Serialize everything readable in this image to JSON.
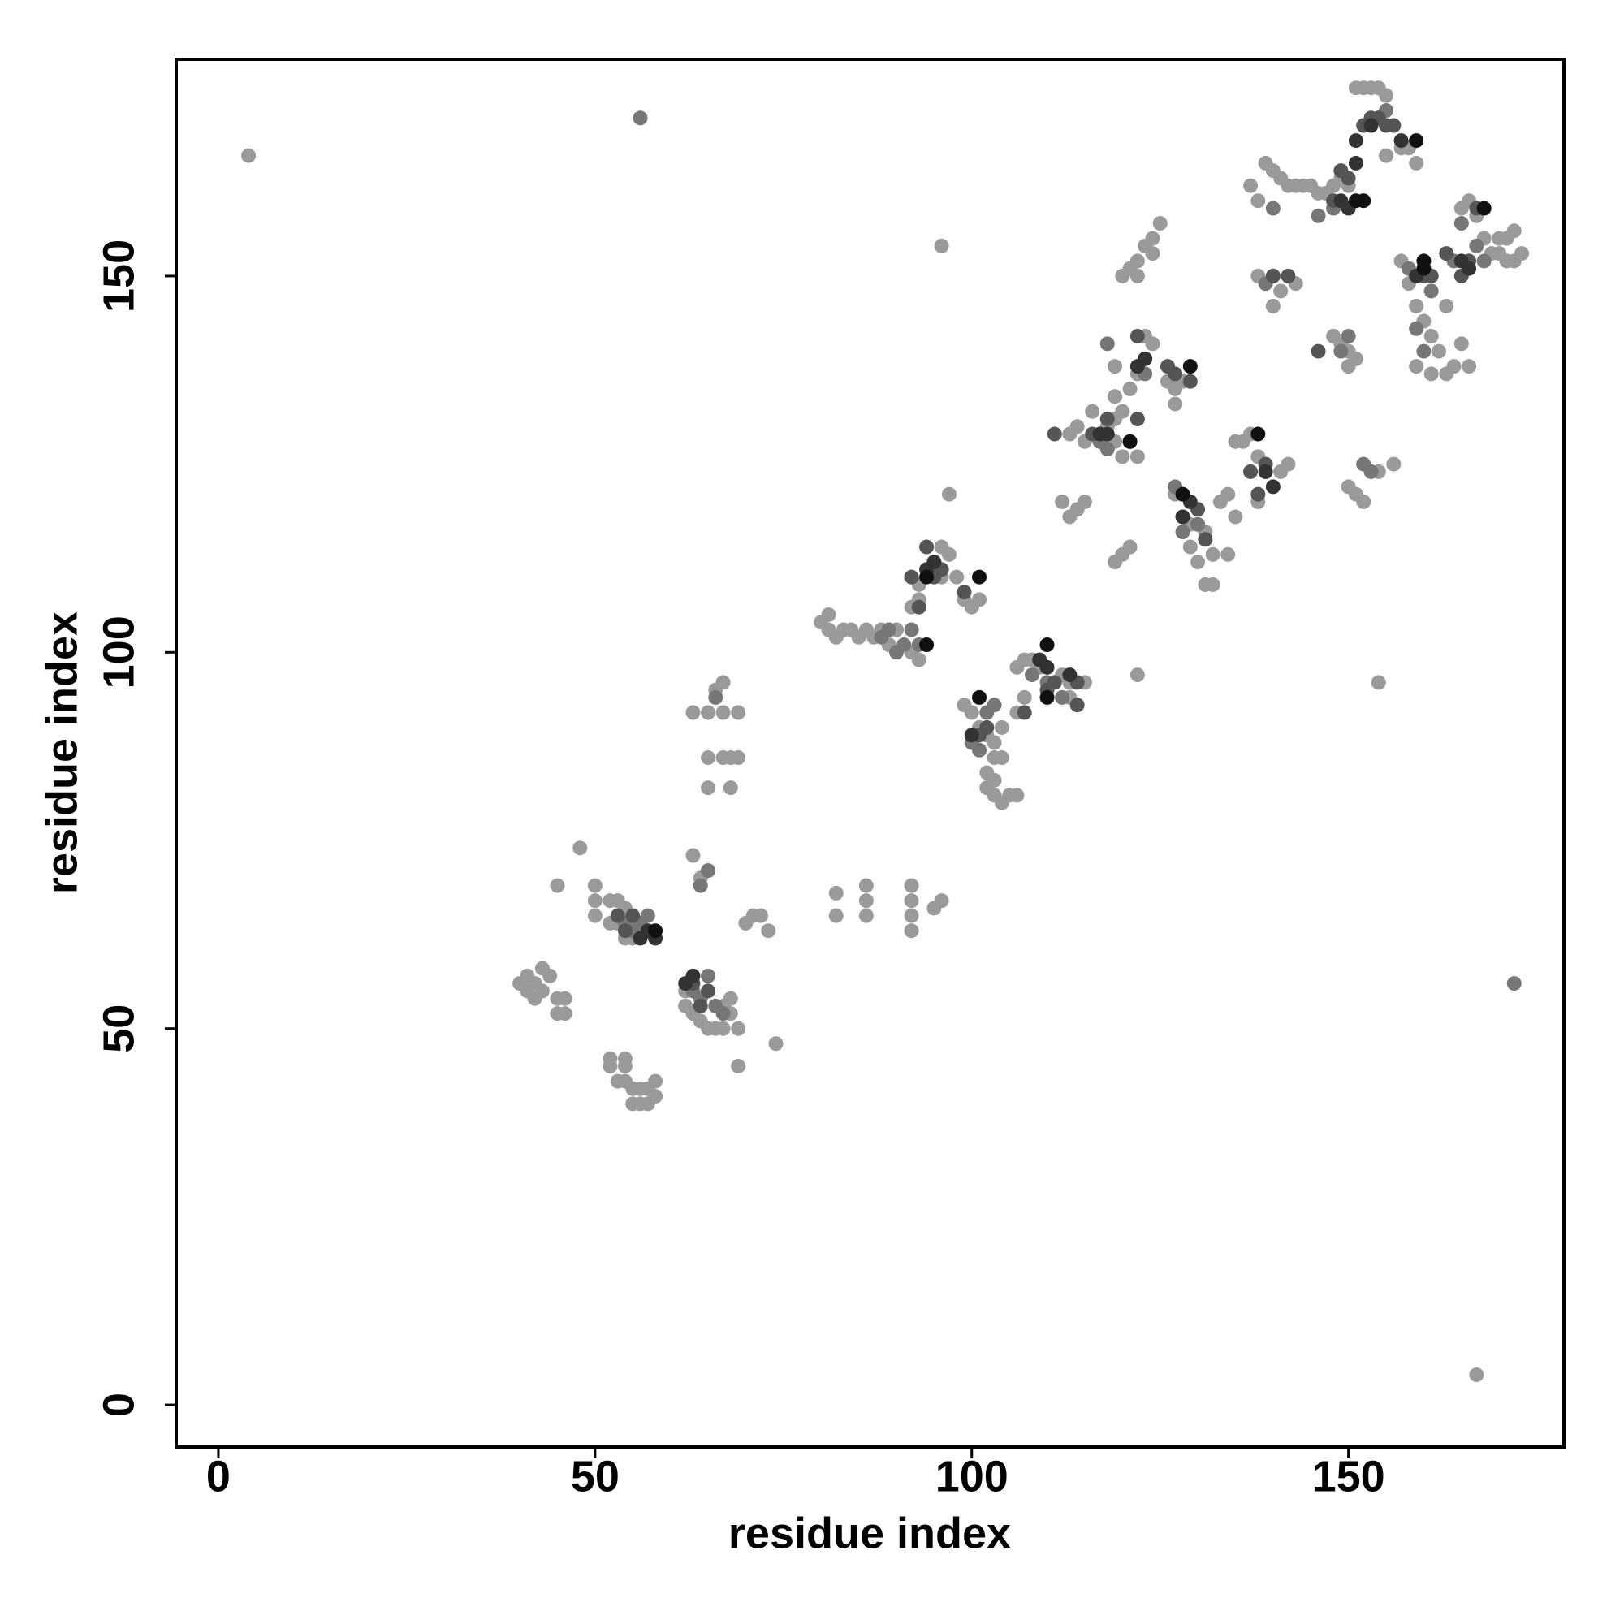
{
  "chart_data": {
    "type": "scatter",
    "x_label": "residue index",
    "y_label": "residue index",
    "xlim": [
      -5.6,
      178.6
    ],
    "ylim": [
      -5.6,
      178.8
    ],
    "xticks": [
      0,
      50,
      100,
      150
    ],
    "yticks": [
      0,
      50,
      100,
      150
    ],
    "series": [
      {
        "color": "#9a9a9a",
        "x": [
          4,
          96,
          167,
          40,
          41,
          42,
          43,
          41,
          43,
          42,
          44,
          45,
          46,
          45,
          46,
          48,
          45,
          50,
          50,
          50,
          52,
          54,
          52,
          54,
          53,
          54,
          55,
          56,
          57,
          55,
          56,
          57,
          58,
          58,
          52,
          53,
          54,
          53,
          52,
          54,
          55,
          62,
          62,
          63,
          64,
          65,
          66,
          67,
          69,
          74,
          69,
          68,
          67,
          68,
          63,
          64,
          65,
          63,
          65,
          67,
          69,
          65,
          67,
          68,
          69,
          65,
          68,
          66,
          67,
          70,
          71,
          72,
          73,
          82,
          82,
          86,
          86,
          86,
          92,
          92,
          92,
          92,
          95,
          96,
          80,
          81,
          81,
          82,
          83,
          84,
          85,
          86,
          87,
          88,
          89,
          90,
          92,
          93,
          92,
          93,
          93,
          95,
          96,
          97,
          96,
          98,
          99,
          100,
          101,
          97,
          99,
          100,
          101,
          102,
          103,
          104,
          103,
          104,
          102,
          102,
          103,
          104,
          105,
          106,
          103,
          106,
          107,
          106,
          107,
          108,
          109,
          112,
          113,
          115,
          113,
          116,
          114,
          113,
          115,
          118,
          119,
          120,
          119,
          120,
          122,
          119,
          121,
          122,
          119,
          123,
          124,
          126,
          127,
          128,
          127,
          112,
          113,
          114,
          115,
          119,
          120,
          121,
          122,
          120,
          121,
          122,
          123,
          124,
          125,
          124,
          122,
          127,
          128,
          129,
          129,
          130,
          131,
          132,
          131,
          132,
          133,
          134,
          135,
          134,
          135,
          136,
          137,
          138,
          138,
          142,
          141,
          137,
          138,
          139,
          140,
          141,
          142,
          143,
          144,
          145,
          146,
          147,
          148,
          149,
          150,
          138,
          143,
          140,
          141,
          148,
          149,
          150,
          151,
          150,
          150,
          151,
          152,
          154,
          156,
          154,
          151,
          152,
          153,
          154,
          155,
          156,
          157,
          158,
          159,
          155,
          157,
          158,
          159,
          160,
          161,
          162,
          159,
          161,
          163,
          164,
          165,
          166,
          163,
          165,
          166,
          167,
          168,
          169,
          170,
          171,
          172,
          173,
          171,
          170,
          172
        ],
        "values": [
          166,
          154,
          4,
          56,
          57,
          56,
          58,
          55,
          55,
          54,
          57,
          52,
          52,
          54,
          54,
          74,
          69,
          69,
          67,
          65,
          46,
          46,
          45,
          45,
          43,
          43,
          42,
          42,
          42,
          40,
          40,
          40,
          41,
          43,
          67,
          67,
          66,
          64,
          64,
          62,
          62,
          55,
          53,
          52,
          51,
          50,
          50,
          50,
          50,
          48,
          45,
          52,
          53,
          54,
          73,
          70,
          71,
          92,
          92,
          92,
          92,
          86,
          86,
          86,
          86,
          82,
          82,
          95,
          96,
          64,
          65,
          65,
          63,
          68,
          65,
          69,
          67,
          65,
          69,
          67,
          65,
          63,
          66,
          67,
          104,
          105,
          103,
          102,
          103,
          103,
          102,
          103,
          102,
          103,
          101,
          103,
          100,
          99,
          106,
          107,
          109,
          112,
          114,
          113,
          110,
          110,
          107,
          106,
          107,
          121,
          93,
          92,
          90,
          89,
          88,
          90,
          86,
          86,
          84,
          82,
          81,
          80,
          81,
          81,
          83,
          92,
          94,
          98,
          99,
          99,
          98,
          97,
          96,
          96,
          94,
          132,
          130,
          129,
          128,
          130,
          131,
          132,
          128,
          126,
          126,
          134,
          135,
          137,
          138,
          142,
          141,
          136,
          135,
          136,
          133,
          120,
          118,
          119,
          120,
          112,
          113,
          114,
          97,
          150,
          151,
          152,
          154,
          155,
          157,
          153,
          150,
          121,
          118,
          117,
          114,
          112,
          109,
          109,
          116,
          113,
          120,
          121,
          118,
          113,
          128,
          128,
          129,
          120,
          126,
          125,
          124,
          162,
          160,
          165,
          164,
          163,
          162,
          162,
          162,
          162,
          161,
          161,
          162,
          163,
          162,
          150,
          149,
          146,
          148,
          142,
          141,
          140,
          139,
          138,
          122,
          121,
          120,
          124,
          125,
          96,
          175,
          175,
          175,
          175,
          174,
          170,
          167,
          167,
          165,
          166,
          152,
          149,
          146,
          144,
          142,
          140,
          138,
          137,
          137,
          138,
          141,
          138,
          146,
          159,
          160,
          158,
          155,
          153,
          153,
          152,
          152,
          153,
          155,
          155,
          156
        ]
      },
      {
        "color": "#777777",
        "x": [
          56,
          172,
          54,
          55,
          56,
          57,
          63,
          64,
          65,
          66,
          67,
          64,
          65,
          66,
          88,
          89,
          90,
          91,
          92,
          93,
          100,
          101,
          102,
          103,
          108,
          110,
          112,
          118,
          117,
          118,
          123,
          127,
          128,
          130,
          139,
          140,
          140,
          146,
          148,
          149,
          150,
          152,
          153,
          154,
          155,
          158,
          159,
          160,
          161,
          164,
          165,
          167,
          168
        ],
        "values": [
          171,
          56,
          64,
          63,
          64,
          65,
          55,
          54,
          57,
          53,
          52,
          69,
          71,
          94,
          102,
          103,
          100,
          101,
          103,
          101,
          88,
          87,
          92,
          93,
          97,
          96,
          94,
          127,
          128,
          141,
          137,
          122,
          116,
          117,
          149,
          150,
          159,
          158,
          159,
          140,
          142,
          125,
          124,
          171,
          172,
          151,
          143,
          140,
          148,
          152,
          157,
          154,
          152
        ]
      },
      {
        "color": "#555555",
        "x": [
          53,
          54,
          55,
          63,
          64,
          65,
          92,
          93,
          94,
          95,
          96,
          99,
          101,
          102,
          107,
          110,
          111,
          114,
          114,
          111,
          116,
          118,
          121,
          122,
          122,
          126,
          127,
          129,
          130,
          131,
          137,
          138,
          139,
          140,
          142,
          146,
          148,
          149,
          150,
          152,
          153,
          154,
          155,
          156,
          160,
          161,
          163,
          165,
          166,
          167
        ],
        "values": [
          65,
          63,
          65,
          56,
          53,
          55,
          110,
          106,
          114,
          110,
          111,
          108,
          89,
          90,
          92,
          95,
          96,
          93,
          96,
          129,
          129,
          131,
          128,
          131,
          142,
          138,
          137,
          136,
          119,
          115,
          124,
          121,
          125,
          150,
          150,
          140,
          160,
          164,
          163,
          170,
          171,
          171,
          170,
          170,
          150,
          150,
          153,
          150,
          152,
          159
        ]
      },
      {
        "color": "#333333",
        "x": [
          56,
          57,
          58,
          62,
          63,
          94,
          95,
          100,
          109,
          110,
          113,
          117,
          118,
          122,
          123,
          128,
          129,
          139,
          140,
          149,
          150,
          151,
          151,
          153,
          157,
          159,
          165,
          166
        ],
        "values": [
          62,
          63,
          62,
          56,
          57,
          111,
          112,
          89,
          99,
          98,
          97,
          129,
          129,
          138,
          139,
          118,
          120,
          124,
          122,
          160,
          159,
          165,
          168,
          170,
          168,
          150,
          152,
          151
        ]
      },
      {
        "color": "#111111",
        "x": [
          58,
          94,
          101,
          101,
          110,
          121,
          128,
          129,
          138,
          152,
          160,
          159,
          168,
          151,
          160,
          110,
          94
        ],
        "values": [
          63,
          101,
          94,
          110,
          101,
          128,
          121,
          138,
          129,
          160,
          152,
          168,
          159,
          160,
          151,
          94,
          110
        ]
      }
    ]
  }
}
